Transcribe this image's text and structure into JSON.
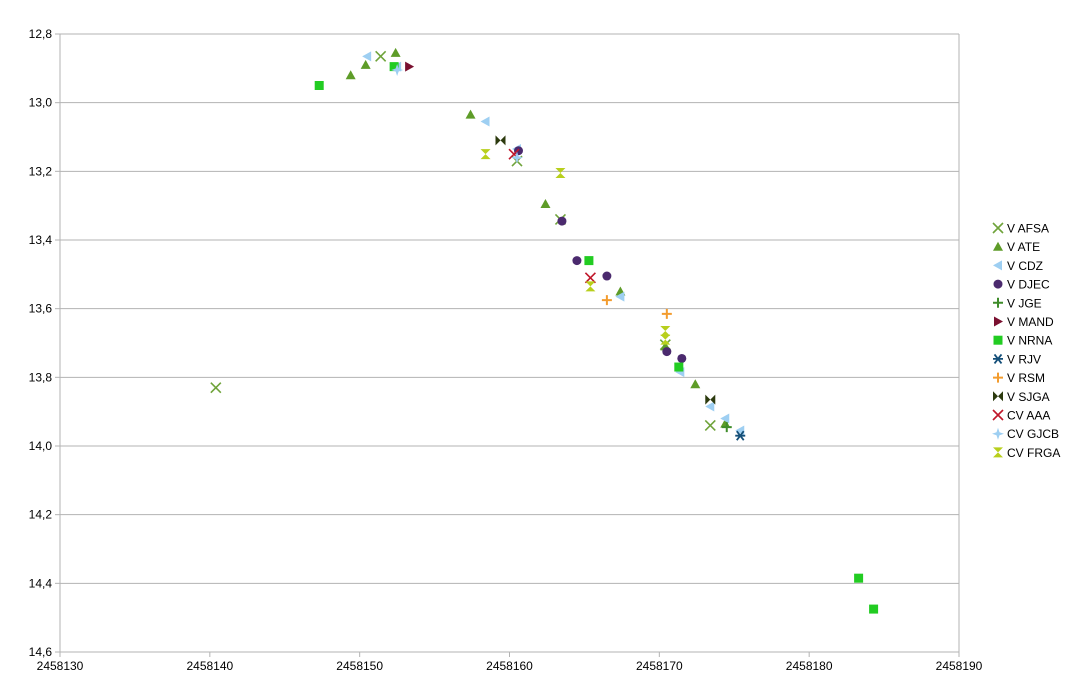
{
  "chart_data": {
    "type": "scatter",
    "title": "",
    "xlabel": "",
    "ylabel": "",
    "xlim": [
      2458130,
      2458190
    ],
    "ylim": [
      12.8,
      14.6
    ],
    "y_inverted": true,
    "grid": "horizontal",
    "legend_position": "right",
    "x_ticks": [
      "2458130",
      "2458140",
      "2458150",
      "2458160",
      "2458170",
      "2458180",
      "2458190"
    ],
    "x_tick_values": [
      2458130,
      2458140,
      2458150,
      2458160,
      2458170,
      2458180,
      2458190
    ],
    "y_ticks": [
      "12,8",
      "13,0",
      "13,2",
      "13,4",
      "13,6",
      "13,8",
      "14,0",
      "14,2",
      "14,4",
      "14,6"
    ],
    "y_tick_values": [
      12.8,
      13.0,
      13.2,
      13.4,
      13.6,
      13.8,
      14.0,
      14.2,
      14.4,
      14.6
    ],
    "series": [
      {
        "name": "V AFSA",
        "marker": "x",
        "color": "#6fa33a",
        "points": [
          [
            2458140.4,
            13.83
          ],
          [
            2458151.4,
            12.865
          ],
          [
            2458160.5,
            13.17
          ],
          [
            2458163.4,
            13.34
          ],
          [
            2458170.4,
            13.705
          ],
          [
            2458173.4,
            13.94
          ]
        ]
      },
      {
        "name": "V ATE",
        "marker": "triangle",
        "color": "#5e9c28",
        "points": [
          [
            2458149.4,
            12.92
          ],
          [
            2458150.4,
            12.89
          ],
          [
            2458152.4,
            12.855
          ],
          [
            2458157.4,
            13.035
          ],
          [
            2458162.4,
            13.295
          ],
          [
            2458167.4,
            13.55
          ],
          [
            2458170.4,
            13.71
          ],
          [
            2458172.4,
            13.82
          ],
          [
            2458174.4,
            13.935
          ]
        ]
      },
      {
        "name": "V CDZ",
        "marker": "triangle-left",
        "color": "#9ecff2",
        "points": [
          [
            2458150.5,
            12.865
          ],
          [
            2458152.5,
            12.895
          ],
          [
            2458158.4,
            13.055
          ],
          [
            2458160.5,
            13.135
          ],
          [
            2458167.4,
            13.565
          ],
          [
            2458171.4,
            13.785
          ],
          [
            2458173.4,
            13.885
          ],
          [
            2458174.4,
            13.92
          ],
          [
            2458175.4,
            13.955
          ]
        ]
      },
      {
        "name": "V DJEC",
        "marker": "circle",
        "color": "#4b2a6e",
        "points": [
          [
            2458160.6,
            13.14
          ],
          [
            2458163.5,
            13.345
          ],
          [
            2458164.5,
            13.46
          ],
          [
            2458166.5,
            13.505
          ],
          [
            2458170.5,
            13.725
          ],
          [
            2458171.5,
            13.745
          ]
        ]
      },
      {
        "name": "V JGE",
        "marker": "plus",
        "color": "#3f8c2a",
        "points": [
          [
            2458174.5,
            13.945
          ]
        ]
      },
      {
        "name": "V MAND",
        "marker": "triangle-right",
        "color": "#7a1030",
        "points": [
          [
            2458153.3,
            12.895
          ]
        ]
      },
      {
        "name": "V NRNA",
        "marker": "square",
        "color": "#22cc22",
        "points": [
          [
            2458147.3,
            12.95
          ],
          [
            2458152.3,
            12.895
          ],
          [
            2458165.3,
            13.46
          ],
          [
            2458171.3,
            13.77
          ],
          [
            2458183.3,
            14.385
          ],
          [
            2458184.3,
            14.475
          ]
        ]
      },
      {
        "name": "V RJV",
        "marker": "asterisk",
        "color": "#144f79",
        "points": [
          [
            2458175.4,
            13.97
          ]
        ]
      },
      {
        "name": "V RSM",
        "marker": "plus",
        "color": "#f39c2e",
        "points": [
          [
            2458166.5,
            13.575
          ],
          [
            2458170.5,
            13.615
          ]
        ]
      },
      {
        "name": "V SJGA",
        "marker": "bowtie",
        "color": "#2c3a0e",
        "points": [
          [
            2458159.4,
            13.11
          ],
          [
            2458173.4,
            13.865
          ]
        ]
      },
      {
        "name": "CV AAA",
        "marker": "x",
        "color": "#c0172a",
        "points": [
          [
            2458160.3,
            13.15
          ],
          [
            2458165.4,
            13.51
          ]
        ]
      },
      {
        "name": "CV GJCB",
        "marker": "star4",
        "color": "#9ecff2",
        "points": [
          [
            2458152.5,
            12.905
          ],
          [
            2458160.5,
            13.16
          ]
        ]
      },
      {
        "name": "CV FRGA",
        "marker": "hourglass",
        "color": "#b8cf1c",
        "points": [
          [
            2458158.4,
            13.15
          ],
          [
            2458163.4,
            13.205
          ],
          [
            2458165.4,
            13.535
          ],
          [
            2458170.4,
            13.665
          ],
          [
            2458170.4,
            13.69
          ]
        ]
      }
    ]
  }
}
